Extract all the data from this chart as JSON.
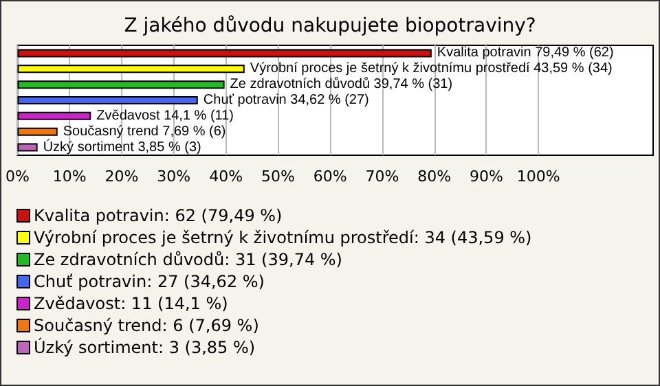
{
  "chart_data": {
    "type": "bar",
    "orientation": "horizontal",
    "stacked": true,
    "title": "Z jakého důvodu nakupujete biopotraviny?",
    "categories": [
      null,
      null,
      null,
      null,
      null,
      null,
      null
    ],
    "series": [
      {
        "name": "Kvalita potravin: 62 (79,49 %)",
        "color": "#cc1111",
        "values": [
          79.49,
          null,
          null,
          null,
          null,
          null,
          null
        ],
        "value_labels": [
          "Kvalita potravin 79,49 % (62)",
          null,
          null,
          null,
          null,
          null,
          null
        ]
      },
      {
        "name": "Výrobní proces je šetrný k životnímu prostředí: 34 (43,59 %)",
        "color": "#ffff00",
        "values": [
          null,
          43.59,
          null,
          null,
          null,
          null,
          null
        ],
        "value_labels": [
          null,
          "Výrobní proces je šetrný k životnímu prostředí 43,59 % (34)",
          null,
          null,
          null,
          null,
          null
        ]
      },
      {
        "name": "Ze zdravotních důvodů: 31 (39,74 %)",
        "color": "#22bb22",
        "values": [
          null,
          null,
          39.74,
          null,
          null,
          null,
          null
        ],
        "value_labels": [
          null,
          null,
          "Ze zdravotních důvodů 39,74 % (31)",
          null,
          null,
          null,
          null
        ]
      },
      {
        "name": "Chuť potravin: 27 (34,62 %)",
        "color": "#4466ee",
        "values": [
          null,
          null,
          null,
          34.62,
          null,
          null,
          null
        ],
        "value_labels": [
          null,
          null,
          null,
          "Chuť potravin 34,62 % (27)",
          null,
          null,
          null
        ]
      },
      {
        "name": "Zvědavost: 11 (14,1 %)",
        "color": "#cc22cc",
        "values": [
          null,
          null,
          null,
          null,
          14.1,
          null,
          null
        ],
        "value_labels": [
          null,
          null,
          null,
          null,
          "Zvědavost 14,1 % (11)",
          null,
          null
        ]
      },
      {
        "name": "Současný trend: 6 (7,69 %)",
        "color": "#ee7711",
        "values": [
          null,
          null,
          null,
          null,
          null,
          7.69,
          null
        ],
        "value_labels": [
          null,
          null,
          null,
          null,
          null,
          "Současný trend 7,69 % (6)",
          null
        ]
      },
      {
        "name": "Úzký sortiment: 3 (3,85 %)",
        "color": "#bb66bb",
        "values": [
          null,
          null,
          null,
          null,
          null,
          null,
          3.85
        ],
        "value_labels": [
          null,
          null,
          null,
          null,
          null,
          null,
          "Úzký sortiment 3,85 % (3)"
        ]
      }
    ],
    "xlim": [
      0,
      122
    ],
    "xticks": [
      {
        "value": 0,
        "label": "0%"
      },
      {
        "value": 10,
        "label": "10%"
      },
      {
        "value": 20,
        "label": "20%"
      },
      {
        "value": 30,
        "label": "30%"
      },
      {
        "value": 40,
        "label": "40%"
      },
      {
        "value": 50,
        "label": "50%"
      },
      {
        "value": 60,
        "label": "60%"
      },
      {
        "value": 70,
        "label": "70%"
      },
      {
        "value": 80,
        "label": "80%"
      },
      {
        "value": 90,
        "label": "90%"
      },
      {
        "value": 100,
        "label": "100%"
      }
    ],
    "grid": "x",
    "legend": "bottom"
  }
}
